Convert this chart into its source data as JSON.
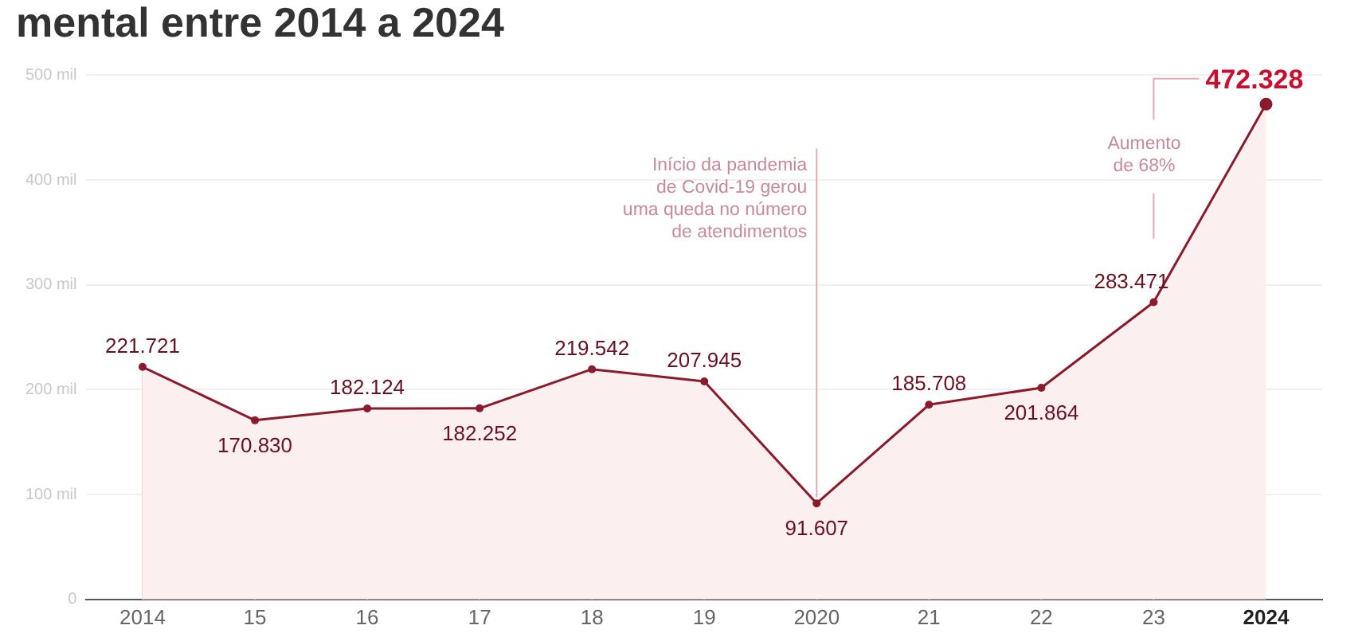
{
  "chart_data": {
    "type": "area",
    "title": "mental entre 2014 a 2024",
    "categories": [
      "2014",
      "15",
      "16",
      "17",
      "18",
      "19",
      "2020",
      "21",
      "22",
      "23",
      "2024"
    ],
    "values": [
      221.721,
      170.83,
      182.124,
      182.252,
      219.542,
      207.945,
      91.607,
      185.708,
      201.864,
      283.471,
      472.328
    ],
    "value_labels": [
      "221.721",
      "170.830",
      "182.124",
      "182.252",
      "219.542",
      "207.945",
      "91.607",
      "185.708",
      "201.864",
      "283.471",
      "472.328"
    ],
    "color": "#8b1a2b",
    "marker": "circle",
    "grid": "y",
    "legend": false,
    "ylim": [
      0,
      500
    ],
    "yticks": [
      0,
      {
        "value": 100,
        "label": "100 mil"
      },
      {
        "value": 200,
        "label": "200 mil"
      },
      {
        "value": 300,
        "label": "300 mil"
      },
      {
        "value": 400,
        "label": "400 mil"
      },
      {
        "value": 500,
        "label": "500 mil"
      }
    ],
    "annotations": [
      {
        "text": "Início da pandemia\nde Covid-19 gerou\numa queda no número\nde atendimentos",
        "x": "2020",
        "y": 91.607
      },
      "Aumento\nde 68%"
    ]
  }
}
